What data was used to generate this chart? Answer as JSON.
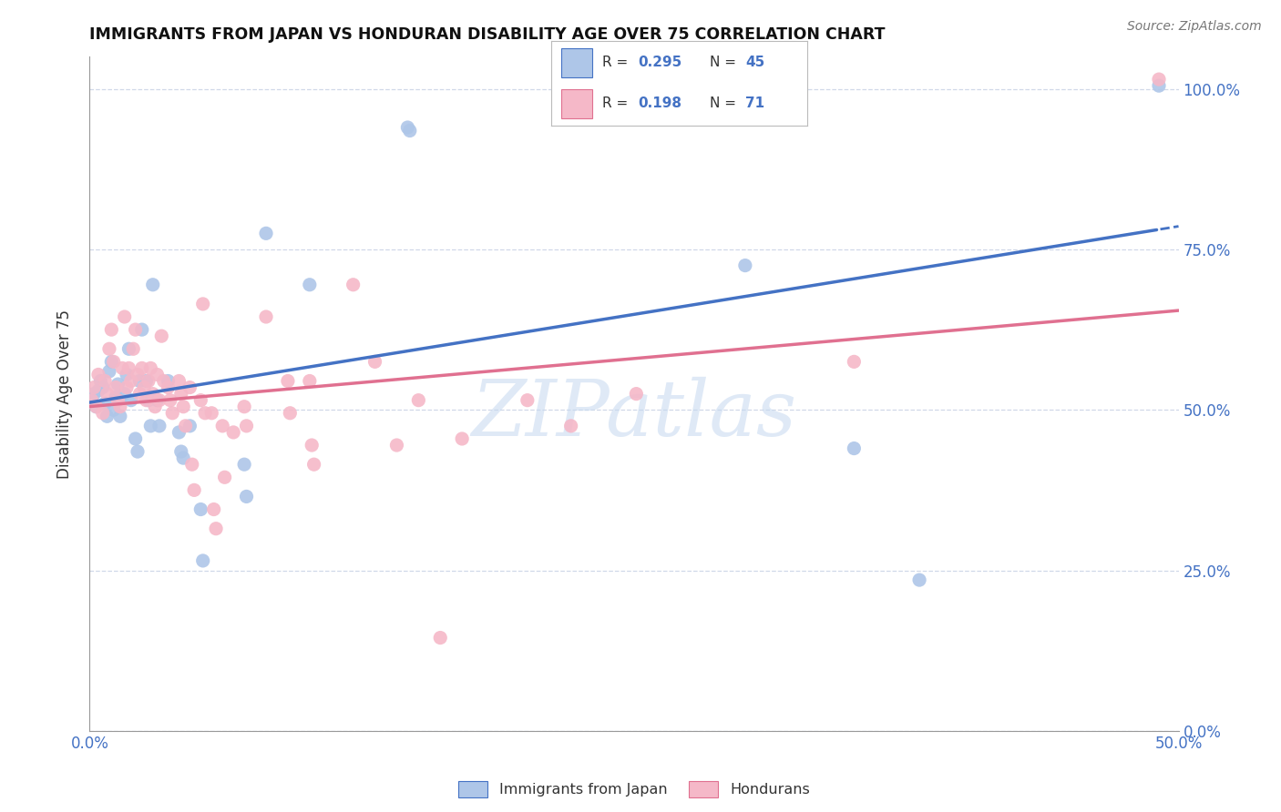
{
  "title": "IMMIGRANTS FROM JAPAN VS HONDURAN DISABILITY AGE OVER 75 CORRELATION CHART",
  "source": "Source: ZipAtlas.com",
  "ylabel": "Disability Age Over 75",
  "xlim": [
    0.0,
    0.5
  ],
  "ylim": [
    0.0,
    1.05
  ],
  "legend_japan_R": "0.295",
  "legend_japan_N": "45",
  "legend_honduran_R": "0.198",
  "legend_honduran_N": "71",
  "japan_color": "#aec6e8",
  "honduran_color": "#f5b8c8",
  "japan_line_color": "#4472c4",
  "honduran_line_color": "#e07090",
  "japan_scatter": [
    [
      0.002,
      0.525
    ],
    [
      0.003,
      0.505
    ],
    [
      0.004,
      0.53
    ],
    [
      0.005,
      0.545
    ],
    [
      0.006,
      0.535
    ],
    [
      0.007,
      0.51
    ],
    [
      0.008,
      0.49
    ],
    [
      0.009,
      0.56
    ],
    [
      0.01,
      0.575
    ],
    [
      0.011,
      0.5
    ],
    [
      0.012,
      0.52
    ],
    [
      0.013,
      0.54
    ],
    [
      0.014,
      0.49
    ],
    [
      0.016,
      0.525
    ],
    [
      0.017,
      0.555
    ],
    [
      0.018,
      0.595
    ],
    [
      0.019,
      0.515
    ],
    [
      0.021,
      0.455
    ],
    [
      0.022,
      0.435
    ],
    [
      0.023,
      0.545
    ],
    [
      0.024,
      0.625
    ],
    [
      0.026,
      0.545
    ],
    [
      0.027,
      0.515
    ],
    [
      0.028,
      0.475
    ],
    [
      0.029,
      0.695
    ],
    [
      0.031,
      0.515
    ],
    [
      0.032,
      0.475
    ],
    [
      0.036,
      0.545
    ],
    [
      0.041,
      0.465
    ],
    [
      0.042,
      0.435
    ],
    [
      0.043,
      0.425
    ],
    [
      0.046,
      0.475
    ],
    [
      0.051,
      0.345
    ],
    [
      0.052,
      0.265
    ],
    [
      0.071,
      0.415
    ],
    [
      0.072,
      0.365
    ],
    [
      0.081,
      0.775
    ],
    [
      0.101,
      0.695
    ],
    [
      0.146,
      0.94
    ],
    [
      0.147,
      0.935
    ],
    [
      0.251,
      0.965
    ],
    [
      0.301,
      0.725
    ],
    [
      0.351,
      0.44
    ],
    [
      0.381,
      0.235
    ],
    [
      0.491,
      1.005
    ]
  ],
  "honduran_scatter": [
    [
      0.001,
      0.515
    ],
    [
      0.002,
      0.535
    ],
    [
      0.003,
      0.505
    ],
    [
      0.004,
      0.555
    ],
    [
      0.006,
      0.495
    ],
    [
      0.007,
      0.545
    ],
    [
      0.008,
      0.525
    ],
    [
      0.009,
      0.595
    ],
    [
      0.01,
      0.625
    ],
    [
      0.011,
      0.575
    ],
    [
      0.012,
      0.535
    ],
    [
      0.013,
      0.515
    ],
    [
      0.014,
      0.505
    ],
    [
      0.015,
      0.565
    ],
    [
      0.016,
      0.645
    ],
    [
      0.017,
      0.535
    ],
    [
      0.018,
      0.565
    ],
    [
      0.019,
      0.545
    ],
    [
      0.02,
      0.595
    ],
    [
      0.021,
      0.625
    ],
    [
      0.022,
      0.555
    ],
    [
      0.023,
      0.525
    ],
    [
      0.024,
      0.565
    ],
    [
      0.025,
      0.535
    ],
    [
      0.026,
      0.515
    ],
    [
      0.027,
      0.545
    ],
    [
      0.028,
      0.565
    ],
    [
      0.029,
      0.525
    ],
    [
      0.03,
      0.505
    ],
    [
      0.031,
      0.555
    ],
    [
      0.032,
      0.515
    ],
    [
      0.033,
      0.615
    ],
    [
      0.034,
      0.545
    ],
    [
      0.036,
      0.535
    ],
    [
      0.037,
      0.515
    ],
    [
      0.038,
      0.495
    ],
    [
      0.041,
      0.545
    ],
    [
      0.042,
      0.525
    ],
    [
      0.043,
      0.505
    ],
    [
      0.044,
      0.475
    ],
    [
      0.046,
      0.535
    ],
    [
      0.047,
      0.415
    ],
    [
      0.048,
      0.375
    ],
    [
      0.051,
      0.515
    ],
    [
      0.052,
      0.665
    ],
    [
      0.053,
      0.495
    ],
    [
      0.056,
      0.495
    ],
    [
      0.057,
      0.345
    ],
    [
      0.058,
      0.315
    ],
    [
      0.061,
      0.475
    ],
    [
      0.062,
      0.395
    ],
    [
      0.066,
      0.465
    ],
    [
      0.071,
      0.505
    ],
    [
      0.072,
      0.475
    ],
    [
      0.081,
      0.645
    ],
    [
      0.091,
      0.545
    ],
    [
      0.092,
      0.495
    ],
    [
      0.101,
      0.545
    ],
    [
      0.102,
      0.445
    ],
    [
      0.103,
      0.415
    ],
    [
      0.121,
      0.695
    ],
    [
      0.131,
      0.575
    ],
    [
      0.141,
      0.445
    ],
    [
      0.151,
      0.515
    ],
    [
      0.171,
      0.455
    ],
    [
      0.201,
      0.515
    ],
    [
      0.221,
      0.475
    ],
    [
      0.251,
      0.525
    ],
    [
      0.351,
      0.575
    ],
    [
      0.491,
      1.015
    ],
    [
      0.161,
      0.145
    ]
  ],
  "watermark": "ZIPatlas",
  "background_color": "#ffffff",
  "grid_color": "#d0d8e8"
}
